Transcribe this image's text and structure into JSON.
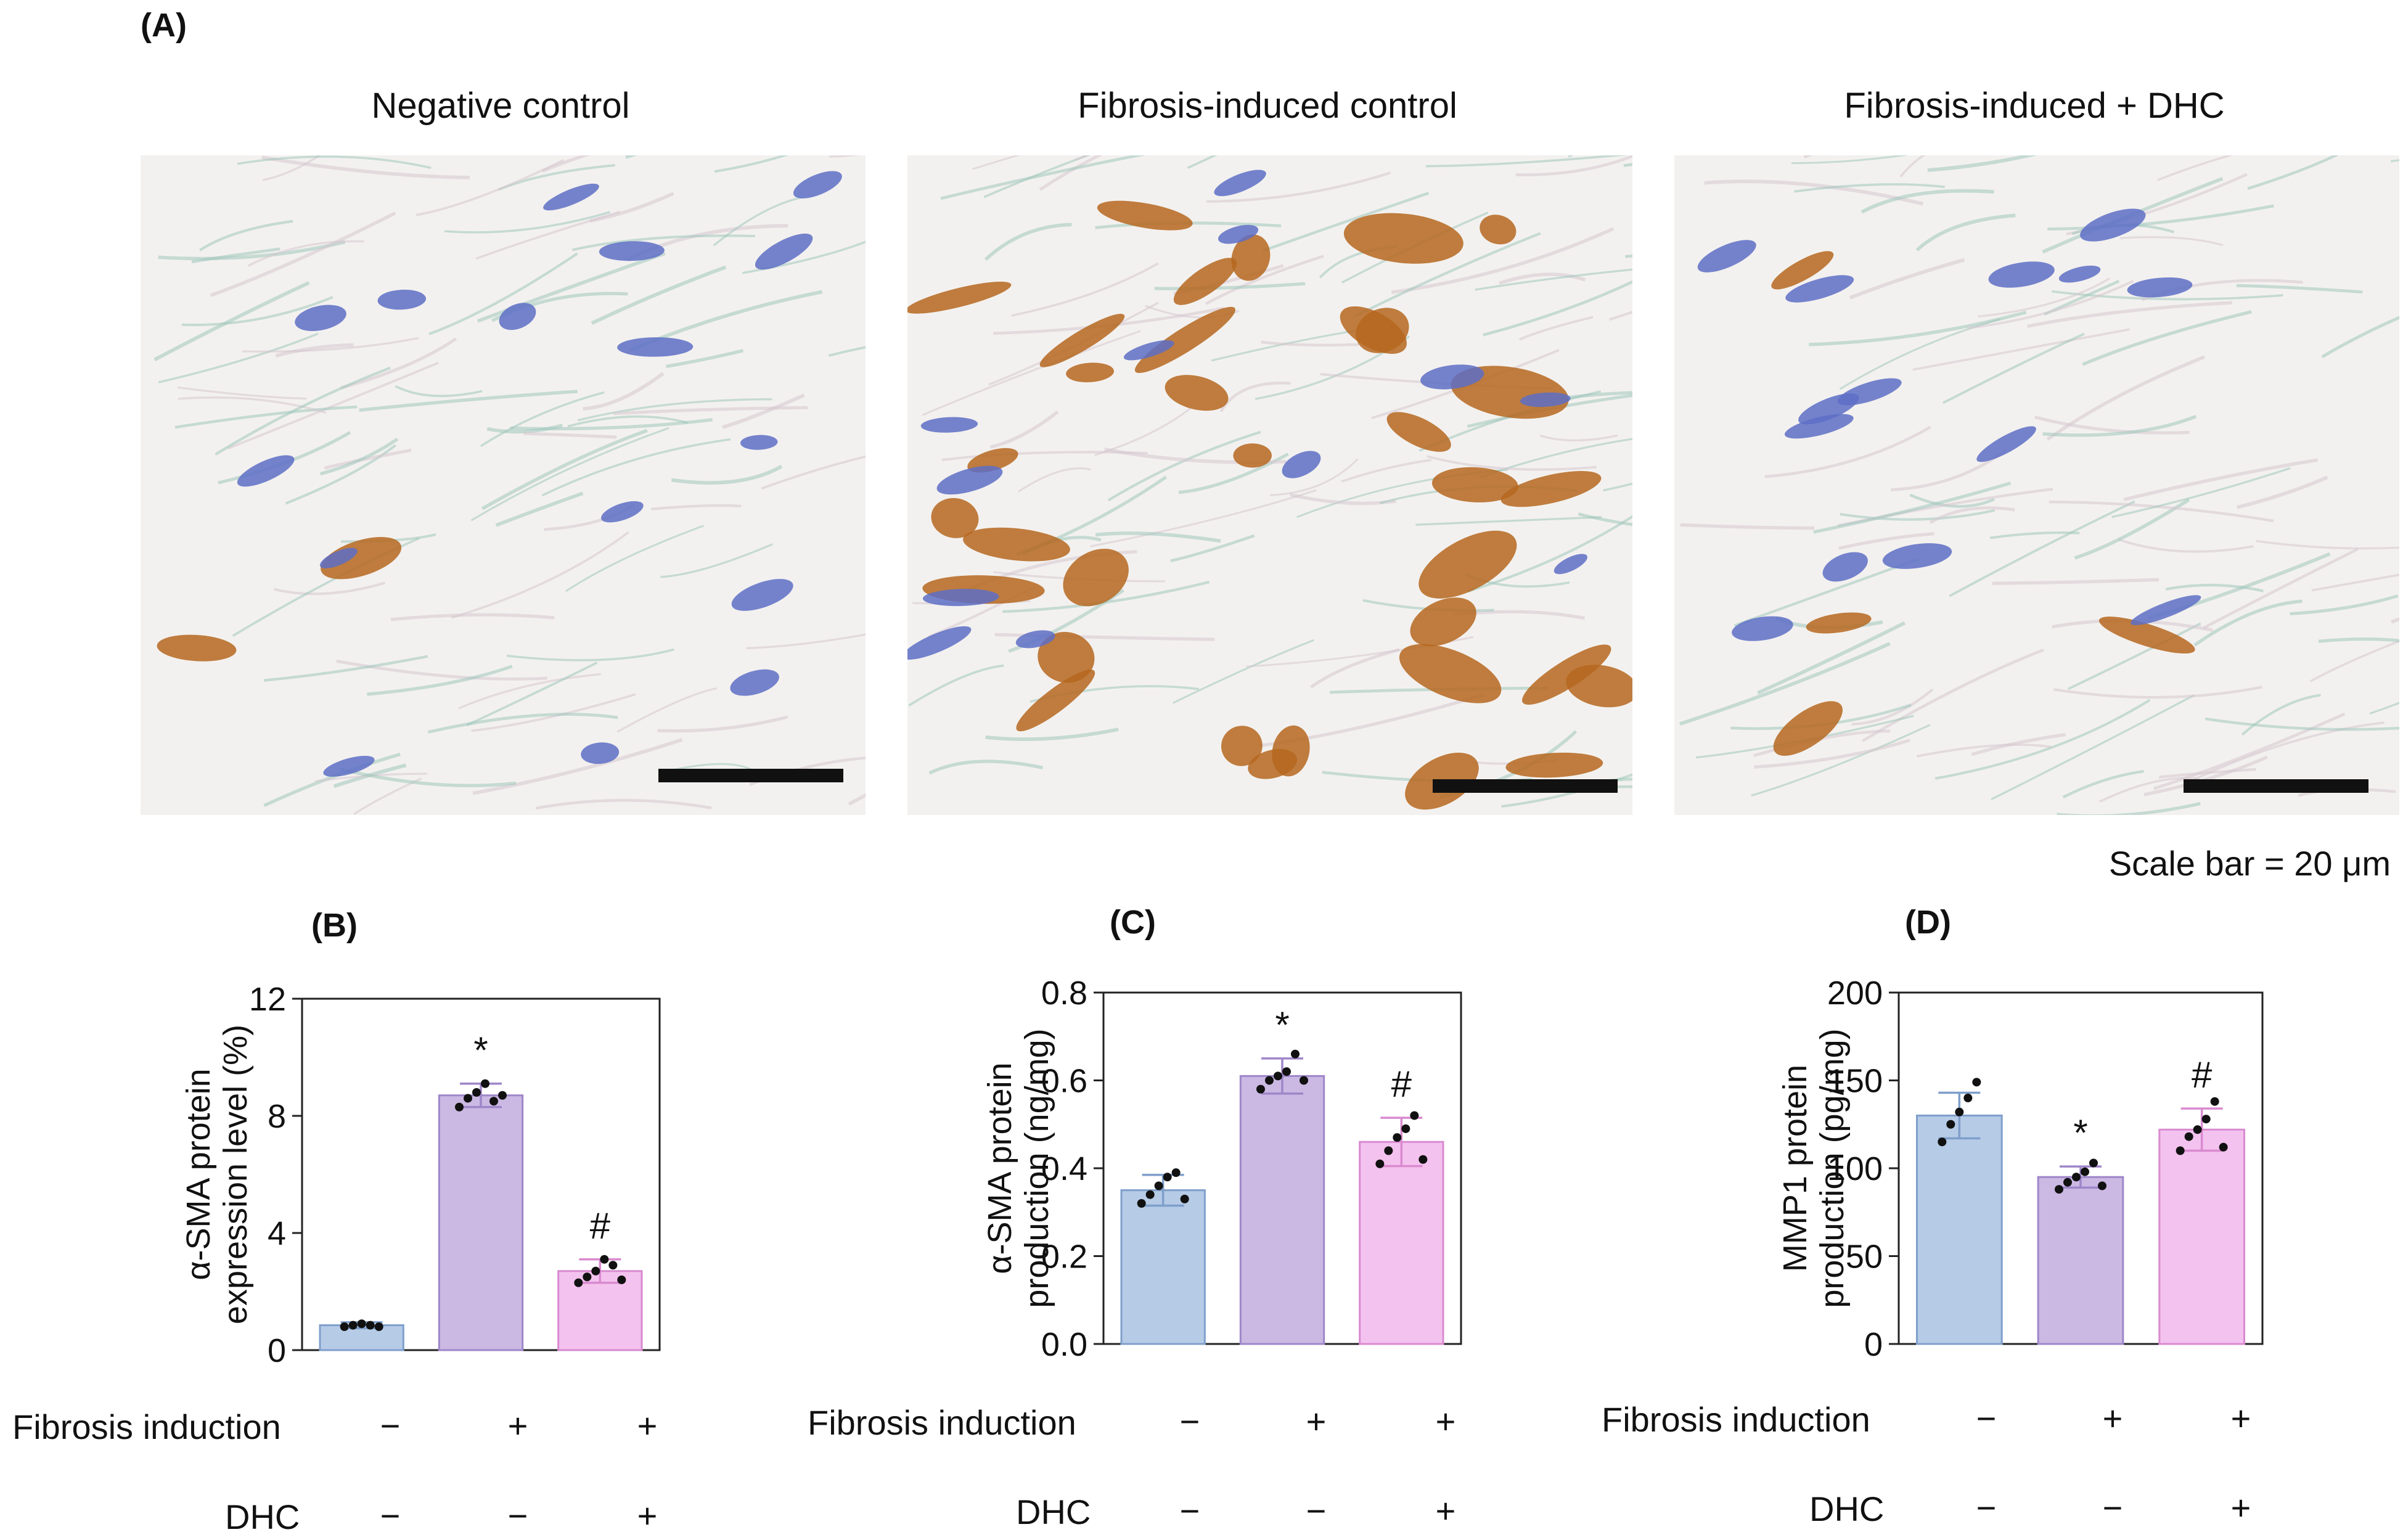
{
  "panel_letters": {
    "a": "(A)",
    "b": "(B)",
    "c": "(C)",
    "d": "(D)"
  },
  "micrographs": [
    {
      "title": "Negative control"
    },
    {
      "title": "Fibrosis-induced control"
    },
    {
      "title": "Fibrosis-induced + DHC"
    }
  ],
  "scale_note": "Scale bar = 20 μm",
  "conditions": {
    "fibrosis_label": "Fibrosis induction",
    "dhc_label": "DHC",
    "fibrosis": [
      "−",
      "+",
      "+"
    ],
    "dhc": [
      "−",
      "−",
      "+"
    ]
  },
  "colors": {
    "bar1_fill": "#b6cbe6",
    "bar1_stroke": "#7f9fcb",
    "bar2_fill": "#cbb9e3",
    "bar2_stroke": "#9f86c9",
    "bar3_fill": "#f4c2ee",
    "bar3_stroke": "#d98ad0",
    "tissue": "#f3f1ef",
    "nucleus": "#5d6fc6",
    "dab": "#b5671f"
  },
  "chart_data": [
    {
      "type": "bar",
      "panel": "(B)",
      "ylabel_line1": "α-SMA protein",
      "ylabel_line2": "expression level (%)",
      "ylim": [
        0,
        12
      ],
      "yticks": [
        "0",
        "4",
        "8",
        "12"
      ],
      "tick_values": [
        0,
        4,
        8,
        12
      ],
      "values": [
        0.85,
        8.7,
        2.7
      ],
      "errors": [
        0.1,
        0.4,
        0.4
      ],
      "points": [
        [
          0.8,
          0.85,
          0.9,
          0.85,
          0.8
        ],
        [
          8.3,
          8.6,
          8.8,
          9.1,
          8.5,
          8.7
        ],
        [
          2.3,
          2.5,
          2.7,
          3.1,
          2.9,
          2.4
        ]
      ],
      "annotations": [
        "",
        "*",
        "#"
      ],
      "grid": false
    },
    {
      "type": "bar",
      "panel": "(C)",
      "ylabel_line1": "α-SMA protein",
      "ylabel_line2": "production (ng/mg)",
      "ylim": [
        0,
        0.8
      ],
      "yticks": [
        "0.0",
        "0.2",
        "0.4",
        "0.6",
        "0.8"
      ],
      "tick_values": [
        0,
        0.2,
        0.4,
        0.6,
        0.8
      ],
      "values": [
        0.35,
        0.61,
        0.46
      ],
      "errors": [
        0.035,
        0.04,
        0.055
      ],
      "points": [
        [
          0.32,
          0.34,
          0.36,
          0.38,
          0.39,
          0.33
        ],
        [
          0.58,
          0.6,
          0.61,
          0.62,
          0.66,
          0.6
        ],
        [
          0.41,
          0.44,
          0.47,
          0.49,
          0.52,
          0.42
        ]
      ],
      "annotations": [
        "",
        "*",
        "#"
      ],
      "grid": false
    },
    {
      "type": "bar",
      "panel": "(D)",
      "ylabel_line1": "MMP1 protein",
      "ylabel_line2": "production (pg/mg)",
      "ylim": [
        0,
        200
      ],
      "yticks": [
        "0",
        "50",
        "100",
        "150",
        "200"
      ],
      "tick_values": [
        0,
        50,
        100,
        150,
        200
      ],
      "values": [
        130,
        95,
        122
      ],
      "errors": [
        13,
        6,
        12
      ],
      "points": [
        [
          115,
          125,
          132,
          140,
          149
        ],
        [
          88,
          92,
          95,
          98,
          103,
          90
        ],
        [
          110,
          118,
          122,
          128,
          138,
          112
        ]
      ],
      "annotations": [
        "",
        "*",
        "#"
      ],
      "grid": false
    }
  ]
}
